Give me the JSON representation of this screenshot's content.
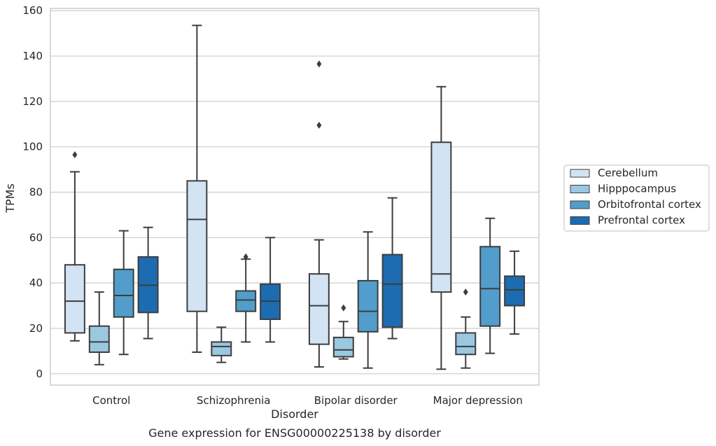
{
  "chart_data": {
    "type": "box",
    "caption": "Gene expression for ENSG00000225138 by disorder",
    "xlabel": "Disorder",
    "ylabel": "TPMs",
    "ylim": [
      -5,
      161
    ],
    "yticks": [
      0,
      20,
      40,
      60,
      80,
      100,
      120,
      140,
      160
    ],
    "grid": "horizontal",
    "legend_position": "right",
    "categories": [
      "Control",
      "Schizophrenia",
      "Bipolar disorder",
      "Major depression"
    ],
    "series": [
      {
        "name": "Cerebellum",
        "color": "#d2e3f3",
        "boxes": [
          {
            "whisker_low": 14.5,
            "q1": 18,
            "median": 32,
            "q3": 48,
            "whisker_high": 89,
            "outliers": [
              96.5
            ]
          },
          {
            "whisker_low": 9.5,
            "q1": 27.5,
            "median": 68,
            "q3": 85,
            "whisker_high": 153.5,
            "outliers": []
          },
          {
            "whisker_low": 3,
            "q1": 13,
            "median": 30,
            "q3": 44,
            "whisker_high": 59,
            "outliers": [
              109.5,
              136.5
            ]
          },
          {
            "whisker_low": 2,
            "q1": 36,
            "median": 44,
            "q3": 102,
            "whisker_high": 126.5,
            "outliers": []
          }
        ]
      },
      {
        "name": "Hipppocampus",
        "color": "#9ac8e0",
        "boxes": [
          {
            "whisker_low": 4,
            "q1": 9.5,
            "median": 14,
            "q3": 21,
            "whisker_high": 36,
            "outliers": []
          },
          {
            "whisker_low": 5,
            "q1": 8,
            "median": 12,
            "q3": 14,
            "whisker_high": 20.5,
            "outliers": []
          },
          {
            "whisker_low": 6.5,
            "q1": 7.5,
            "median": 10.5,
            "q3": 16,
            "whisker_high": 23,
            "outliers": [
              29
            ]
          },
          {
            "whisker_low": 2.5,
            "q1": 8.5,
            "median": 12,
            "q3": 18,
            "whisker_high": 25,
            "outliers": [
              36
            ]
          }
        ]
      },
      {
        "name": "Orbitofrontal cortex",
        "color": "#529dcc",
        "boxes": [
          {
            "whisker_low": 8.5,
            "q1": 25,
            "median": 34.5,
            "q3": 46,
            "whisker_high": 63,
            "outliers": []
          },
          {
            "whisker_low": 14,
            "q1": 27.5,
            "median": 32.5,
            "q3": 36.5,
            "whisker_high": 50.5,
            "outliers": [
              51.5
            ]
          },
          {
            "whisker_low": 2.5,
            "q1": 18.5,
            "median": 27.5,
            "q3": 41,
            "whisker_high": 62.5,
            "outliers": []
          },
          {
            "whisker_low": 9,
            "q1": 21,
            "median": 37.5,
            "q3": 56,
            "whisker_high": 68.5,
            "outliers": []
          }
        ]
      },
      {
        "name": "Prefrontal cortex",
        "color": "#1d6cb1",
        "boxes": [
          {
            "whisker_low": 15.5,
            "q1": 27,
            "median": 39,
            "q3": 51.5,
            "whisker_high": 64.5,
            "outliers": []
          },
          {
            "whisker_low": 14,
            "q1": 24,
            "median": 32,
            "q3": 39.5,
            "whisker_high": 60,
            "outliers": []
          },
          {
            "whisker_low": 15.5,
            "q1": 20.5,
            "median": 39.5,
            "q3": 52.5,
            "whisker_high": 77.5,
            "outliers": []
          },
          {
            "whisker_low": 17.5,
            "q1": 30,
            "median": 37,
            "q3": 43,
            "whisker_high": 54,
            "outliers": []
          }
        ]
      }
    ]
  }
}
